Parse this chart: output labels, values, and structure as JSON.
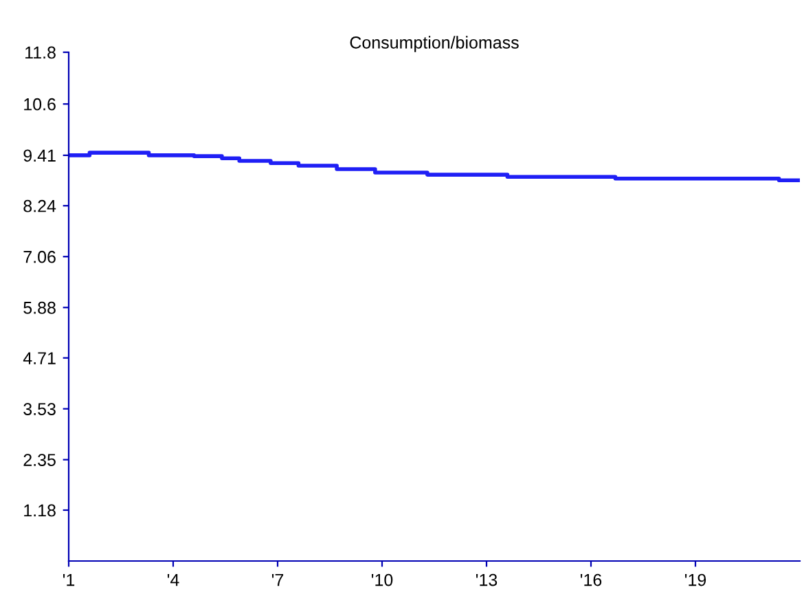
{
  "chart_data": {
    "type": "step",
    "title": "Consumption/biomass",
    "x": [
      1.0,
      1.6,
      3.3,
      4.6,
      5.4,
      5.9,
      6.8,
      7.6,
      8.7,
      9.8,
      11.3,
      13.6,
      16.7,
      21.4,
      22.0
    ],
    "series": [
      {
        "color": "#1f1ff5",
        "values": [
          9.41,
          9.47,
          9.41,
          9.39,
          9.34,
          9.28,
          9.23,
          9.17,
          9.09,
          9.01,
          8.96,
          8.91,
          8.87,
          8.83,
          8.83
        ]
      }
    ],
    "xlim": [
      1,
      22
    ],
    "ylim": [
      0,
      11.8
    ],
    "xticks": [
      {
        "value": 1,
        "label": "'1"
      },
      {
        "value": 4,
        "label": "'4"
      },
      {
        "value": 7,
        "label": "'7"
      },
      {
        "value": 10,
        "label": "'10"
      },
      {
        "value": 13,
        "label": "'13"
      },
      {
        "value": 16,
        "label": "'16"
      },
      {
        "value": 19,
        "label": "'19"
      }
    ],
    "yticks": [
      1.18,
      2.35,
      3.53,
      4.71,
      5.88,
      7.06,
      8.24,
      9.41,
      10.6,
      11.8
    ],
    "grid": false,
    "legend": false
  }
}
